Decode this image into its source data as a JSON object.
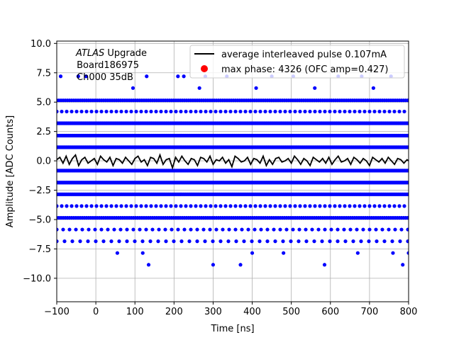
{
  "chart_data": {
    "type": "scatter",
    "xlabel": "Time [ns]",
    "ylabel": "Amplitude [ADC Counts]",
    "xlim": [
      -100,
      800
    ],
    "ylim": [
      -12,
      10.2
    ],
    "x_ticks": [
      -100,
      0,
      100,
      200,
      300,
      400,
      500,
      600,
      700,
      800
    ],
    "x_tick_labels": [
      "−100",
      "0",
      "100",
      "200",
      "300",
      "400",
      "500",
      "600",
      "700",
      "800"
    ],
    "y_ticks": [
      -10,
      -7.5,
      -5,
      -2.5,
      0,
      2.5,
      5,
      7.5,
      10
    ],
    "y_tick_labels": [
      "−10.0",
      "−7.5",
      "−5.0",
      "−2.5",
      "0.0",
      "2.5",
      "5.0",
      "7.5",
      "10.0"
    ],
    "grid": true,
    "legend_position": "top-right",
    "annotation": {
      "line1_italic": "ATLAS",
      "line1_rest": " Upgrade",
      "line2": " Board186975",
      "line3": "Ch000 35dB"
    },
    "series": [
      {
        "name": "average interleaved pulse 0.107mA",
        "kind": "line",
        "color": "#000000",
        "x": [
          -100,
          -92,
          -84,
          -76,
          -68,
          -60,
          -52,
          -44,
          -36,
          -28,
          -20,
          -12,
          -4,
          4,
          12,
          20,
          28,
          36,
          44,
          52,
          60,
          68,
          76,
          84,
          92,
          100,
          108,
          116,
          124,
          132,
          140,
          148,
          156,
          164,
          172,
          180,
          188,
          196,
          204,
          212,
          220,
          228,
          236,
          244,
          252,
          260,
          268,
          276,
          284,
          292,
          300,
          308,
          316,
          324,
          332,
          340,
          348,
          356,
          364,
          372,
          380,
          388,
          396,
          404,
          412,
          420,
          428,
          436,
          444,
          452,
          460,
          468,
          476,
          484,
          492,
          500,
          508,
          516,
          524,
          532,
          540,
          548,
          556,
          564,
          572,
          580,
          588,
          596,
          604,
          612,
          620,
          628,
          636,
          644,
          652,
          660,
          668,
          676,
          684,
          692,
          700,
          708,
          716,
          724,
          732,
          740,
          748,
          756,
          764,
          772,
          780,
          788,
          796,
          800
        ],
        "y": [
          0.1,
          0.3,
          -0.2,
          0.4,
          -0.3,
          0.2,
          0.5,
          -0.4,
          0.1,
          0.3,
          -0.2,
          0.0,
          0.2,
          -0.3,
          0.4,
          0.1,
          -0.1,
          0.3,
          -0.4,
          0.2,
          0.1,
          -0.2,
          0.3,
          0.0,
          -0.3,
          0.2,
          0.4,
          -0.1,
          0.1,
          -0.4,
          0.3,
          0.2,
          -0.2,
          0.5,
          -0.3,
          0.1,
          0.2,
          -0.6,
          0.3,
          -0.1,
          0.4,
          0.0,
          -0.3,
          0.2,
          0.1,
          -0.4,
          0.3,
          0.2,
          -0.1,
          0.4,
          -0.3,
          0.1,
          0.0,
          0.3,
          -0.2,
          0.1,
          -0.5,
          0.4,
          0.2,
          -0.1,
          0.0,
          0.3,
          -0.3,
          0.2,
          0.1,
          -0.2,
          0.4,
          -0.4,
          0.1,
          -0.3,
          0.2,
          0.3,
          -0.1,
          0.0,
          0.2,
          -0.2,
          0.4,
          0.1,
          -0.3,
          0.2,
          0.0,
          -0.4,
          0.3,
          0.1,
          -0.1,
          0.2,
          -0.2,
          0.3,
          -0.3,
          0.1,
          0.4,
          -0.1,
          0.0,
          0.2,
          -0.3,
          0.3,
          0.1,
          -0.2,
          0.2,
          0.0,
          -0.4,
          0.3,
          0.1,
          -0.1,
          0.2,
          -0.2,
          0.3,
          0.0,
          -0.3,
          0.2,
          0.1,
          -0.2,
          0.1,
          0.0
        ]
      },
      {
        "name": "max phase: 4326 (OFC amp=0.427)",
        "kind": "markers",
        "color": "#ff0000",
        "x": [],
        "y": []
      },
      {
        "name": "",
        "kind": "levels",
        "color": "#0000ff",
        "levels": [
          {
            "y": 1.16,
            "spacing": 1.5
          },
          {
            "y": 2.15,
            "spacing": 1.5
          },
          {
            "y": 3.2,
            "spacing": 1.5
          },
          {
            "y": -0.83,
            "spacing": 1.5
          },
          {
            "y": -1.85,
            "spacing": 1.5
          },
          {
            "y": -2.85,
            "spacing": 1.5
          },
          {
            "y": 5.15,
            "spacing": 3.0
          },
          {
            "y": -4.85,
            "spacing": 3.0
          },
          {
            "y": 4.2,
            "spacing": 7.0
          },
          {
            "y": -3.85,
            "spacing": 7.0
          },
          {
            "y": -5.85,
            "spacing": 9.0
          },
          {
            "y": -6.85,
            "spacing": 11.0
          }
        ],
        "sparse_x": [
          -90,
          -25,
          130,
          210,
          225,
          280,
          335,
          450,
          505,
          620,
          680,
          755,
          -45,
          95,
          265,
          410,
          560,
          710,
          55,
          120,
          400,
          480,
          670,
          760,
          800,
          135,
          300,
          370,
          585,
          785
        ],
        "sparse_y": [
          7.2,
          7.2,
          7.2,
          7.2,
          7.2,
          7.2,
          7.2,
          7.2,
          7.2,
          7.2,
          7.2,
          7.2,
          7.2,
          6.2,
          6.2,
          6.2,
          6.2,
          6.2,
          -7.85,
          -7.85,
          -7.85,
          -7.85,
          -7.85,
          -7.85,
          -7.85,
          -8.85,
          -8.85,
          -8.85,
          -8.85,
          -8.85
        ]
      }
    ]
  }
}
